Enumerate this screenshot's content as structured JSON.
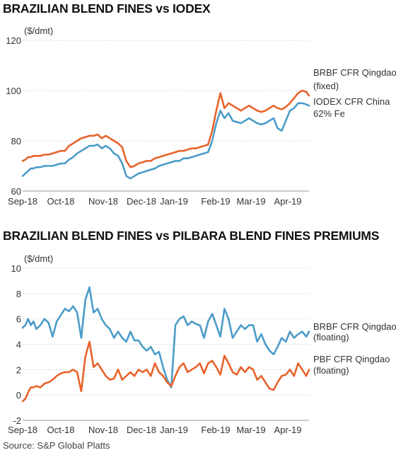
{
  "source": "Source: S&P Global Platts",
  "chart_data": [
    {
      "type": "line",
      "title": "BRAZILIAN BLEND FINES vs IODEX",
      "unit": "($/dmt)",
      "ylim": [
        60,
        120
      ],
      "yticks": [
        60,
        80,
        100,
        120
      ],
      "xticks": [
        "Sep-18",
        "Oct-18",
        "Nov-18",
        "Dec-18",
        "Jan-19",
        "Feb-19",
        "Mar-19",
        "Apr-19"
      ],
      "grid": true,
      "colors": {
        "BRBF": "#E8632B",
        "IODEX": "#4C9CC8"
      },
      "x": [
        0,
        2,
        4,
        6,
        8,
        10,
        13,
        16,
        19,
        22,
        25,
        28,
        31,
        34,
        37,
        40,
        43,
        46,
        49,
        52,
        55,
        58,
        61,
        64,
        67,
        70,
        73,
        76,
        79,
        82,
        85,
        88,
        91,
        94,
        97,
        100,
        103,
        106,
        109,
        112,
        115,
        118,
        121,
        124,
        127,
        130,
        133,
        136,
        139,
        142,
        145,
        148,
        151,
        154,
        157,
        160,
        163,
        166,
        169,
        172,
        175,
        178,
        181,
        184,
        187,
        190,
        193,
        196,
        199,
        202,
        205,
        208,
        210
      ],
      "series": [
        {
          "name": "BRBF CFR Qingdao (fixed)",
          "values": [
            72,
            72.5,
            73.5,
            73.5,
            74,
            74,
            74,
            74.5,
            74.5,
            75,
            75.5,
            76,
            76,
            78,
            79,
            80,
            81,
            81.5,
            82,
            82,
            82.5,
            81,
            82,
            81,
            80,
            79,
            77.5,
            72,
            69.5,
            70,
            71,
            71.5,
            72,
            72,
            73,
            73.5,
            74,
            74.5,
            75,
            75.5,
            76,
            76,
            76.5,
            77,
            77,
            77.5,
            78,
            78.5,
            84,
            92,
            99,
            93,
            95,
            94,
            93,
            92,
            93,
            94,
            93,
            92,
            91.5,
            92,
            93,
            94,
            93,
            92.5,
            93.5,
            95,
            97,
            99,
            100,
            99.5,
            98
          ]
        },
        {
          "name": "IODEX CFR China 62% Fe",
          "values": [
            66,
            67,
            68,
            69,
            69,
            69.5,
            69.5,
            70,
            70,
            70,
            70.5,
            71,
            71,
            72.5,
            73.5,
            75,
            76,
            77,
            78,
            78,
            78.5,
            77,
            78,
            77,
            75,
            74,
            71,
            66,
            65,
            66,
            67,
            67.5,
            68,
            68.5,
            69,
            70,
            70.5,
            71,
            71.5,
            72,
            72,
            73,
            73,
            73.5,
            74,
            74.5,
            75,
            75.5,
            80,
            87,
            92,
            89,
            91,
            88,
            87.5,
            87,
            88,
            89,
            88,
            87,
            86.5,
            87,
            88,
            89,
            85,
            84,
            88,
            92,
            93,
            95,
            95,
            94.5,
            94
          ]
        }
      ]
    },
    {
      "type": "line",
      "title": "BRAZILIAN BLEND FINES vs PILBARA BLEND FINES PREMIUMS",
      "unit": "($/dmt)",
      "ylim": [
        -2,
        10
      ],
      "yticks": [
        -2,
        0,
        2,
        4,
        6,
        8,
        10
      ],
      "xticks": [
        "Sep-18",
        "Oct-18",
        "Nov-18",
        "Dec-18",
        "Jan-19",
        "Feb-19",
        "Mar-19",
        "Apr-19"
      ],
      "grid": true,
      "colors": {
        "BRBF": "#4C9CC8",
        "PBF": "#E8632B"
      },
      "x": [
        0,
        2,
        4,
        6,
        8,
        10,
        13,
        16,
        19,
        22,
        25,
        28,
        31,
        34,
        37,
        40,
        43,
        46,
        49,
        52,
        55,
        58,
        61,
        64,
        67,
        70,
        73,
        76,
        79,
        82,
        85,
        88,
        91,
        94,
        97,
        100,
        103,
        106,
        109,
        112,
        115,
        118,
        121,
        124,
        127,
        130,
        133,
        136,
        139,
        142,
        145,
        148,
        151,
        154,
        157,
        160,
        163,
        166,
        169,
        172,
        175,
        178,
        181,
        184,
        187,
        190,
        193,
        196,
        199,
        202,
        205,
        208,
        210
      ],
      "series": [
        {
          "name": "BRBF CFR Qingdao (floating)",
          "values": [
            5.3,
            5.5,
            6,
            5.5,
            5.8,
            5.2,
            5.5,
            6,
            5.7,
            4.6,
            5.8,
            6.3,
            6.8,
            6.6,
            7,
            6.5,
            4.5,
            7.5,
            8.5,
            6.5,
            6.8,
            6,
            5.5,
            5.2,
            4.5,
            5,
            4.5,
            4.2,
            5,
            4.3,
            4.3,
            3.8,
            3.5,
            3.8,
            3.2,
            3.4,
            2.2,
            1.2,
            0.6,
            5.5,
            6,
            6.2,
            5.5,
            5.8,
            5.6,
            5.5,
            4.5,
            5.8,
            6.4,
            5.5,
            4.6,
            6.8,
            6,
            4.5,
            5,
            5.5,
            5.2,
            5.5,
            5.5,
            4.2,
            4.8,
            4,
            3.5,
            3.2,
            3.8,
            4.5,
            4.2,
            5,
            4.5,
            4.8,
            5,
            4.6,
            5
          ]
        },
        {
          "name": "PBF CFR Qingdao (floating)",
          "values": [
            -0.5,
            -0.3,
            0.2,
            0.6,
            0.6,
            0.7,
            0.6,
            0.9,
            1,
            1.2,
            1.5,
            1.7,
            1.8,
            1.8,
            2,
            1.8,
            0.3,
            3,
            4.2,
            2.2,
            2.5,
            2,
            1.5,
            1.2,
            1.3,
            2,
            1.2,
            1.5,
            1.8,
            1.5,
            2,
            1.8,
            2,
            1.5,
            2.5,
            1.8,
            1.5,
            1,
            0.7,
            1.5,
            2.2,
            2.5,
            1.8,
            2,
            2.2,
            2.5,
            1.7,
            2.5,
            2.7,
            2.2,
            1.6,
            3.1,
            2.5,
            1.8,
            1.6,
            2.2,
            1.8,
            2.2,
            2,
            1.2,
            1.5,
            1,
            0.5,
            0.4,
            1,
            1.5,
            1.6,
            2,
            1.5,
            2.5,
            2,
            1.5,
            2
          ]
        }
      ]
    }
  ]
}
